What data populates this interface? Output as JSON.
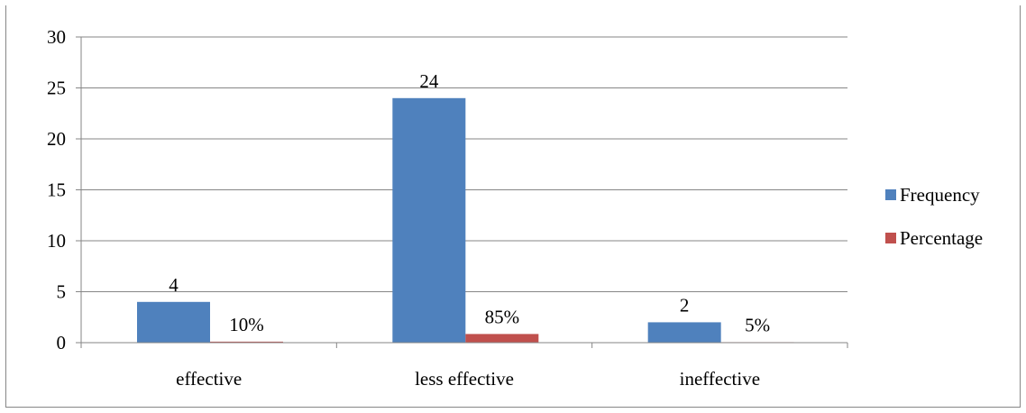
{
  "chart_data": {
    "type": "bar",
    "categories": [
      "effective",
      "less effective",
      "ineffective"
    ],
    "series": [
      {
        "name": "Frequency",
        "color": "#4F81BD",
        "values": [
          4,
          24,
          2
        ],
        "data_labels": [
          "4",
          "24",
          "2"
        ]
      },
      {
        "name": "Percentage",
        "color": "#C0504D",
        "values": [
          0.1,
          0.85,
          0.05
        ],
        "data_labels": [
          "10%",
          "85%",
          "5%"
        ]
      }
    ],
    "ylim": [
      0,
      30
    ],
    "yticks": [
      0,
      5,
      10,
      15,
      20,
      25,
      30
    ],
    "ytick_labels": [
      "0",
      "5",
      "10",
      "15",
      "20",
      "25",
      "30"
    ],
    "grid": true,
    "legend_position": "right"
  }
}
